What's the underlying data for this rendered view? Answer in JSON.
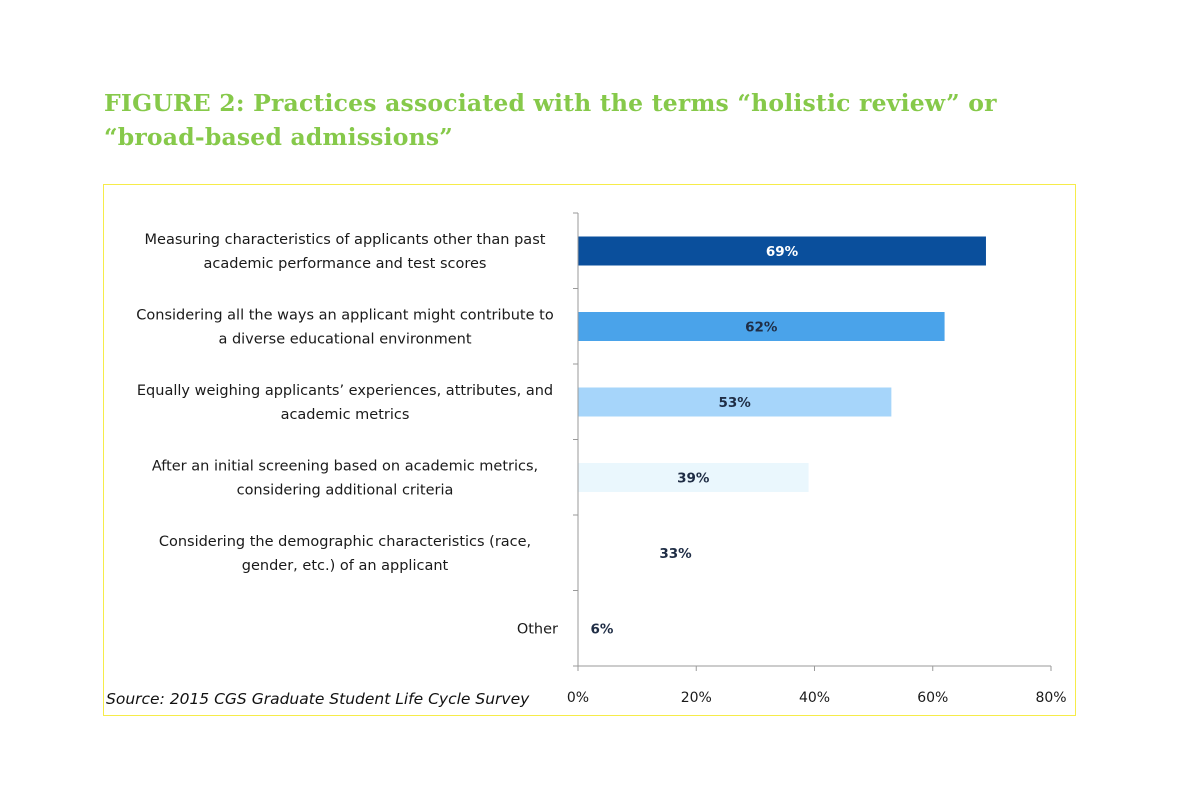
{
  "figure": {
    "title": "FIGURE 2: Practices associated with the terms “holistic review” or “broad-based admissions”",
    "source": "Source: 2015 CGS Graduate Student Life Cycle Survey"
  },
  "colors": {
    "title": "#86c94a",
    "frame": "#f6ec4a",
    "axis": "#9a9a9a"
  },
  "chart_data": {
    "type": "bar",
    "orientation": "horizontal",
    "title": "",
    "xlabel": "",
    "ylabel": "",
    "xlim": [
      0,
      80
    ],
    "xticks": [
      0,
      20,
      40,
      60,
      80
    ],
    "tick_labels": [
      "0%",
      "20%",
      "40%",
      "60%",
      "80%"
    ],
    "grid": false,
    "legend": "none",
    "categories": [
      [
        "Measuring characteristics of applicants other than past",
        "academic performance and test scores"
      ],
      [
        "Considering all the ways an applicant might contribute to",
        "a diverse educational environment"
      ],
      [
        "Equally weighing applicants’ experiences, attributes, and",
        "academic metrics"
      ],
      [
        "After an initial screening based on academic metrics,",
        "considering additional criteria"
      ],
      [
        "Considering the demographic characteristics (race,",
        "gender, etc.) of an applicant"
      ],
      [
        "Other"
      ]
    ],
    "values": [
      69,
      62,
      53,
      39,
      33,
      6
    ],
    "value_labels": [
      "69%",
      "62%",
      "53%",
      "39%",
      "33%",
      "6%"
    ],
    "bar_colors": [
      "#0a4f9c",
      "#4aa3ea",
      "#a6d5fa",
      "#eaf7fd",
      "#ffffff",
      "#ffffff"
    ],
    "label_colors": [
      "#ffffff",
      "#1f2d45",
      "#1f2d45",
      "#1f2d45",
      "#1f2d45",
      "#1f2d45"
    ]
  }
}
